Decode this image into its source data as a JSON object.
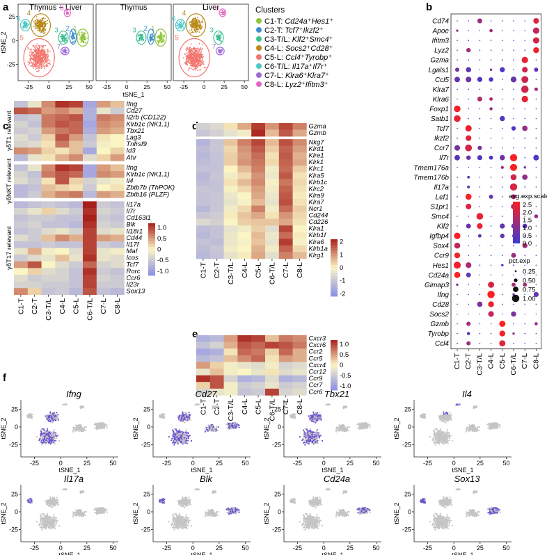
{
  "figure": {
    "panel_labels": [
      "a",
      "b",
      "c",
      "d",
      "e",
      "f"
    ]
  },
  "chart_data": [
    {
      "id": "a",
      "type": "scatter",
      "subplot_titles": [
        "Thymus + Liver",
        "Thymus",
        "Liver"
      ],
      "xlabel": "tSNE_1",
      "ylabel": "tSNE_2",
      "xticks": [
        "-25",
        "0",
        "25",
        "50"
      ],
      "yticks": [
        "-25",
        "0",
        "25"
      ],
      "xlim": [
        -38,
        55
      ],
      "ylim": [
        -42,
        38
      ],
      "clusters": [
        {
          "num": "1",
          "color": "#8fc43a",
          "cx": 42,
          "cy": 3,
          "rx": 7,
          "ry": 9
        },
        {
          "num": "2",
          "color": "#3f8fd0",
          "cx": 30,
          "cy": 4,
          "rx": 4,
          "ry": 8
        },
        {
          "num": "3",
          "color": "#3fbf8f",
          "cx": 18,
          "cy": 3,
          "rx": 6,
          "ry": 7
        },
        {
          "num": "4",
          "color": "#b98a1b",
          "cx": -10,
          "cy": 16,
          "rx": 12,
          "ry": 12
        },
        {
          "num": "5",
          "color": "#f2766f",
          "cx": -12,
          "cy": -18,
          "rx": 19,
          "ry": 20
        },
        {
          "num": "6",
          "color": "#4cc9c4",
          "cx": -29,
          "cy": 16,
          "rx": 6,
          "ry": 6
        },
        {
          "num": "7",
          "color": "#a06ad9",
          "cx": 20,
          "cy": -11,
          "rx": 5,
          "ry": 4
        },
        {
          "num": "8",
          "color": "#e366c5",
          "cx": 23,
          "cy": 29,
          "rx": 4,
          "ry": 4
        }
      ],
      "legend": {
        "title": "Clusters",
        "items": [
          {
            "prefix": "C1-T: ",
            "genes": "Cd24a⁺Hes1⁺",
            "color": "#8fc43a"
          },
          {
            "prefix": "C2-T: ",
            "genes": "Tcf7⁺Ikzf2⁺",
            "color": "#3f8fd0"
          },
          {
            "prefix": "C3-T/L: ",
            "genes": "Klf2⁺Smc4⁺",
            "color": "#3fbf8f"
          },
          {
            "prefix": "C4-L: ",
            "genes": "Socs2⁺Cd28⁺",
            "color": "#b98a1b"
          },
          {
            "prefix": "C5-L: ",
            "genes": "Ccl4⁺Tyrobp⁺",
            "color": "#f2766f"
          },
          {
            "prefix": "C6-T/L: ",
            "genes": "Il17a⁺Il7r⁺",
            "color": "#4cc9c4"
          },
          {
            "prefix": "C7-L: ",
            "genes": "Klra6⁺Klra7⁺",
            "color": "#a06ad9"
          },
          {
            "prefix": "C8-L: ",
            "genes": "Lyz2⁺Ifitm3⁺",
            "color": "#e366c5"
          }
        ]
      }
    },
    {
      "id": "b",
      "type": "dot",
      "categories": [
        "C1-T",
        "C2-T",
        "C3-T/L",
        "C4-L",
        "C5-L",
        "C6-T/L",
        "C7-L",
        "C8-L"
      ],
      "genes": [
        "Cd74",
        "Apoe",
        "Ifitm3",
        "Lyz2",
        "Gzma",
        "Lgals1",
        "Ccl5",
        "Klra7",
        "Klra6",
        "Foxp1",
        "Satb1",
        "Tcf7",
        "Ikzf2",
        "Ccr7",
        "Il7r",
        "Tmem176a",
        "Tmem176b",
        "Il17a",
        "Lef1",
        "S1pr1",
        "Smc4",
        "Klf2",
        "Igfbp4",
        "Sox4",
        "Ccr9",
        "Hes1",
        "Cd24a",
        "Gimap3",
        "Ifng",
        "Cd28",
        "Socs2",
        "Gzmb",
        "Tyrobp",
        "Ccl4"
      ],
      "color_legend": {
        "title": "avg.exp.scale",
        "ticks": [
          "2.5",
          "2.0",
          "1.5",
          "1.0",
          "0.5",
          "0.0"
        ],
        "range": [
          0,
          2.7
        ],
        "low": "#3a3ad6",
        "high": "#ff1f1f"
      },
      "size_legend": {
        "title": "pct.exp",
        "ticks": [
          "0.25",
          "0.50",
          "0.75",
          "1.00"
        ]
      }
    },
    {
      "id": "c",
      "type": "heatmap",
      "categories": [
        "C1-T",
        "C2-T",
        "C3-T/L",
        "C4-L",
        "C5-L",
        "C6-T/L",
        "C7-L",
        "C8-L"
      ],
      "groups": [
        {
          "label": "γδT1 relevant",
          "rows": [
            "Ifng",
            "Cd27",
            "Il2rb (CD122)",
            "Klrb1c (NK1.1)",
            "Tbx21",
            "Lag3",
            "Tnfrsf9",
            "Id3",
            "Ahr"
          ]
        },
        {
          "label": "γδNKT relevant",
          "rows": [
            "Ifng",
            "Klrb1c (NK1.1)",
            "Il4",
            "Zbtb7b (ThPOK)",
            "Zbtb16 (PLZF)"
          ]
        },
        {
          "label": "γδT17 relevant",
          "rows": [
            "Il17a",
            "Il7r",
            "Cd163l1",
            "Blk",
            "Il18r1",
            "Cd44",
            "Il17f",
            "Maf",
            "Icos",
            "Tcf7",
            "Rorc",
            "Ccr6",
            "Il23r",
            "Sox13"
          ]
        }
      ],
      "scale": {
        "ticks": [
          "1.0",
          "0.5",
          "0",
          "-0.5",
          "-1.0"
        ],
        "range": [
          -1.2,
          1.2
        ]
      }
    },
    {
      "id": "d",
      "type": "heatmap",
      "categories": [
        "C1-T",
        "C2-T",
        "C3-T/L",
        "C4-L",
        "C5-L",
        "C6-T/L",
        "C7-L",
        "C8-L"
      ],
      "groups": [
        {
          "label": "",
          "rows": [
            "Gzma",
            "Gzmb"
          ]
        },
        {
          "label": "",
          "rows": [
            "Nkg7",
            "Klrd1",
            "Klre1",
            "Klrk1",
            "Klrc1",
            "Klra5",
            "Klrb1c",
            "Klrc2",
            "Klra9",
            "Klra7",
            "Ncr1",
            "Cd244",
            "Cd226",
            "Klra1",
            "Klrb1f",
            "Klra6",
            "Klrb1a",
            "Klrg1"
          ]
        }
      ],
      "scale": {
        "ticks": [
          "2",
          "1",
          "0",
          "-1",
          "-2"
        ],
        "range": [
          -2.2,
          2.2
        ]
      }
    },
    {
      "id": "e",
      "type": "heatmap",
      "categories": [
        "C1-T",
        "C2-T",
        "C3-T/L",
        "C4-L",
        "C5-L",
        "C6-T/L",
        "C7-L",
        "C8-L"
      ],
      "groups": [
        {
          "label": "",
          "rows": [
            "Cxcr3",
            "Cxcr6",
            "Ccr2",
            "Ccr5",
            "Cxcr4",
            "Ccr12",
            "Ccr9",
            "Ccr7",
            "Ccr6"
          ]
        }
      ],
      "scale": {
        "ticks": [
          "1.0",
          "0.5",
          "0",
          "-0.5",
          "-1.0"
        ],
        "range": [
          -1.2,
          1.2
        ]
      }
    },
    {
      "id": "f",
      "type": "scatter",
      "xlabel": "tSNE_1",
      "ylabel": "tSNE_2",
      "xticks": [
        "-25",
        "0",
        "25",
        "50"
      ],
      "yticks": [
        "-25",
        "0",
        "25"
      ],
      "xlim": [
        -38,
        55
      ],
      "ylim": [
        -42,
        38
      ],
      "panels": [
        {
          "gene": "Ifng",
          "region": "L"
        },
        {
          "gene": "Cd27",
          "region": "LT"
        },
        {
          "gene": "Tbx21",
          "region": "L"
        },
        {
          "gene": "Il4",
          "region": "U"
        },
        {
          "gene": "Il17a",
          "region": "6"
        },
        {
          "gene": "Blk",
          "region": "6T"
        },
        {
          "gene": "Cd24a",
          "region": "T"
        },
        {
          "gene": "Sox13",
          "region": "T6"
        }
      ]
    }
  ]
}
